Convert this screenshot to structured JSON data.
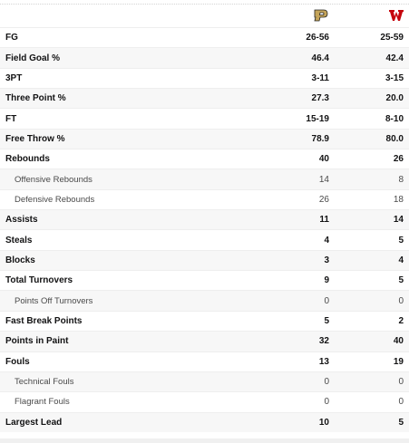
{
  "teams": {
    "team_a_logo_icon": "purdue-p-logo-icon",
    "team_b_logo_icon": "wisconsin-w-logo-icon",
    "team_a_color": "#c4a45a",
    "team_b_color": "#c5050c"
  },
  "stats": [
    {
      "label": "FG",
      "a": "26-56",
      "b": "25-59",
      "sub": false
    },
    {
      "label": "Field Goal %",
      "a": "46.4",
      "b": "42.4",
      "sub": false
    },
    {
      "label": "3PT",
      "a": "3-11",
      "b": "3-15",
      "sub": false
    },
    {
      "label": "Three Point %",
      "a": "27.3",
      "b": "20.0",
      "sub": false
    },
    {
      "label": "FT",
      "a": "15-19",
      "b": "8-10",
      "sub": false
    },
    {
      "label": "Free Throw %",
      "a": "78.9",
      "b": "80.0",
      "sub": false
    },
    {
      "label": "Rebounds",
      "a": "40",
      "b": "26",
      "sub": false
    },
    {
      "label": "Offensive Rebounds",
      "a": "14",
      "b": "8",
      "sub": true
    },
    {
      "label": "Defensive Rebounds",
      "a": "26",
      "b": "18",
      "sub": true
    },
    {
      "label": "Assists",
      "a": "11",
      "b": "14",
      "sub": false
    },
    {
      "label": "Steals",
      "a": "4",
      "b": "5",
      "sub": false
    },
    {
      "label": "Blocks",
      "a": "3",
      "b": "4",
      "sub": false
    },
    {
      "label": "Total Turnovers",
      "a": "9",
      "b": "5",
      "sub": false
    },
    {
      "label": "Points Off Turnovers",
      "a": "0",
      "b": "0",
      "sub": true
    },
    {
      "label": "Fast Break Points",
      "a": "5",
      "b": "2",
      "sub": false
    },
    {
      "label": "Points in Paint",
      "a": "32",
      "b": "40",
      "sub": false
    },
    {
      "label": "Fouls",
      "a": "13",
      "b": "19",
      "sub": false
    },
    {
      "label": "Technical Fouls",
      "a": "0",
      "b": "0",
      "sub": true
    },
    {
      "label": "Flagrant Fouls",
      "a": "0",
      "b": "0",
      "sub": true
    },
    {
      "label": "Largest Lead",
      "a": "10",
      "b": "5",
      "sub": false
    }
  ]
}
